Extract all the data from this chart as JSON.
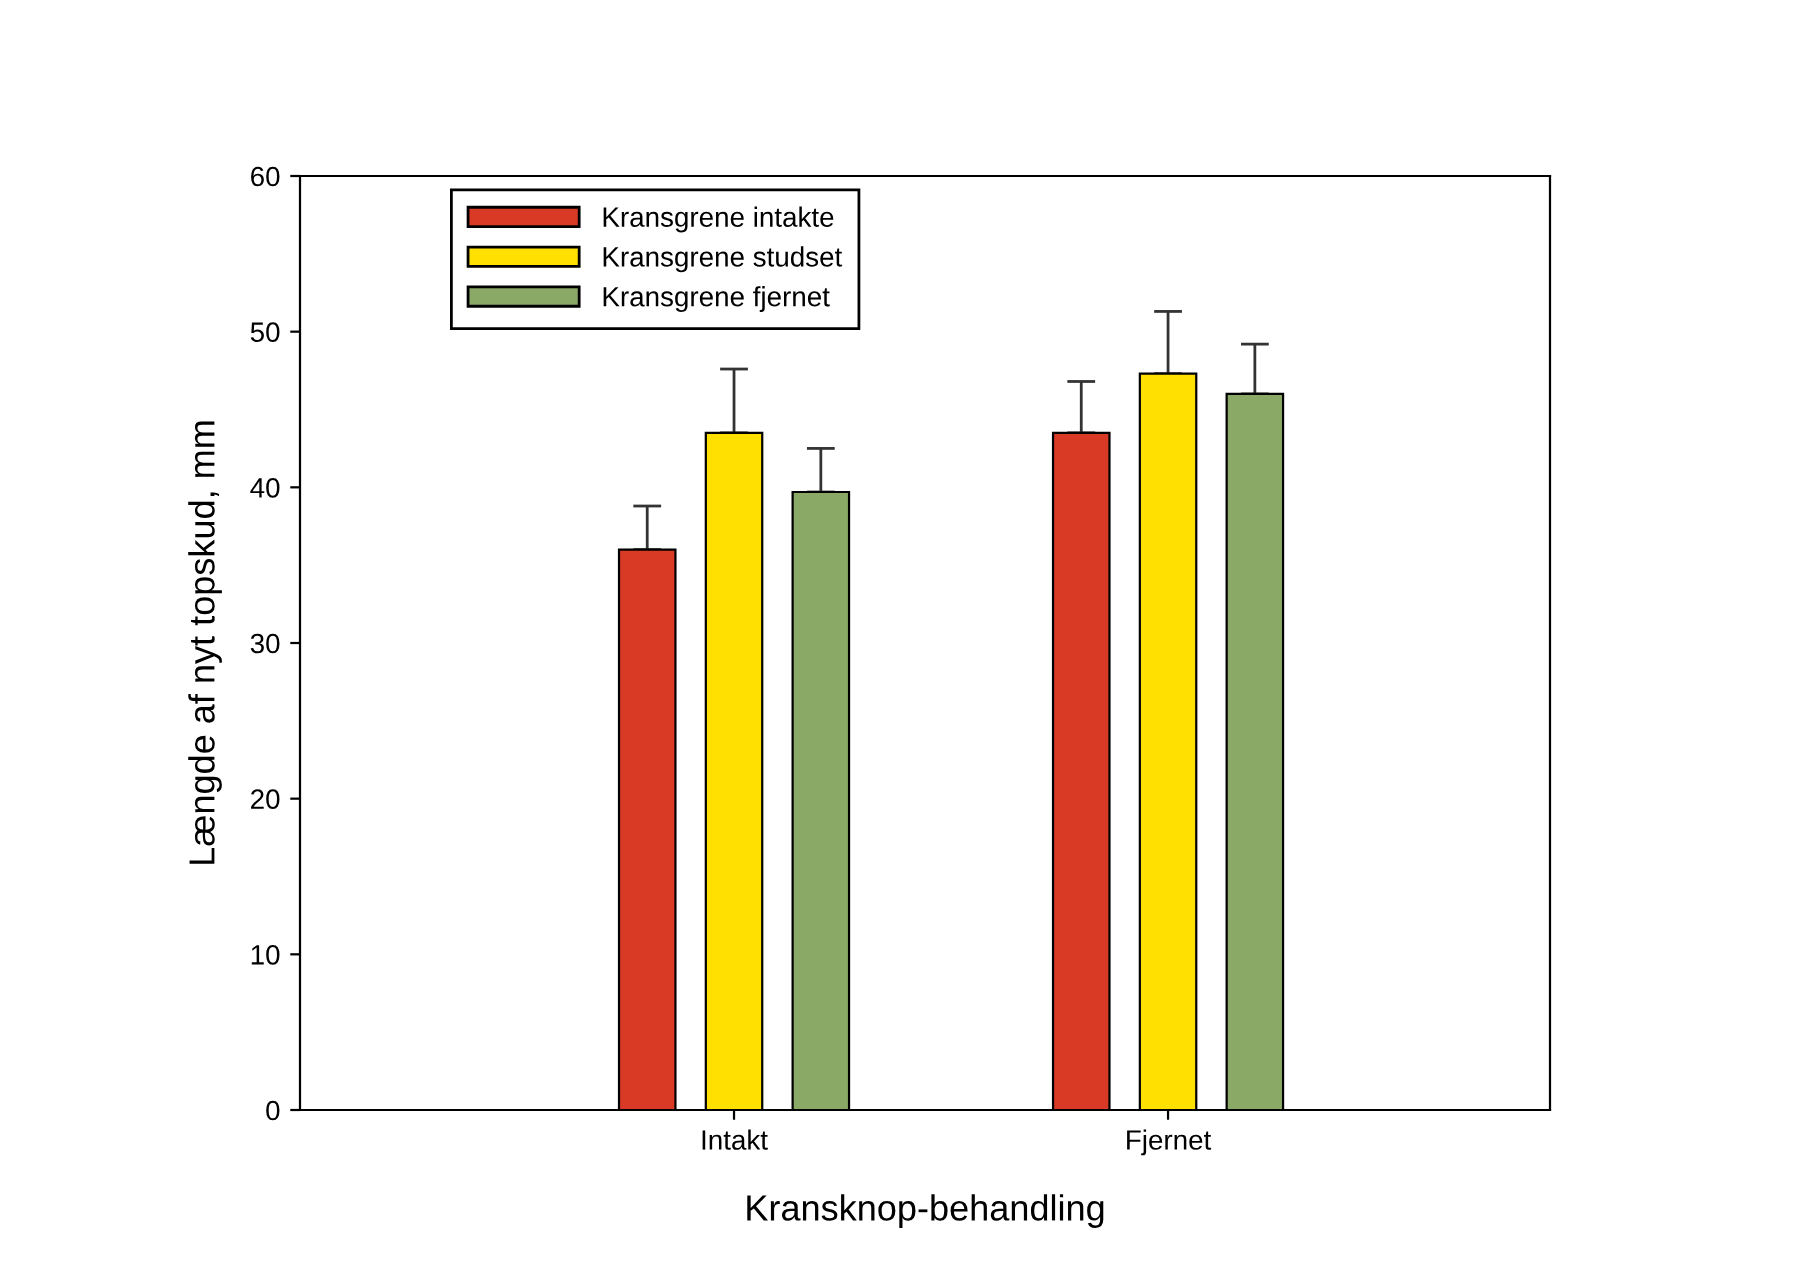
{
  "chart_data": {
    "type": "bar",
    "xlabel": "Kransknop-behandling",
    "ylabel": "Længde af nyt topskud, mm",
    "categories": [
      "Intakt",
      "Fjernet"
    ],
    "series": [
      {
        "name": "Kransgrene intakte",
        "color": "#d93a26",
        "values": [
          36,
          43.5
        ],
        "errors": [
          [
            36,
            38.8
          ],
          [
            43.5,
            46.8
          ]
        ]
      },
      {
        "name": "Kransgrene studset",
        "color": "#ffe000",
        "values": [
          43.5,
          47.3
        ],
        "errors": [
          [
            43.5,
            47.6
          ],
          [
            47.3,
            51.3
          ]
        ]
      },
      {
        "name": "Kransgrene fjernet",
        "color": "#8aa866",
        "values": [
          39.7,
          46
        ],
        "errors": [
          [
            39.7,
            42.5
          ],
          [
            46,
            49.2
          ]
        ]
      }
    ],
    "ylim": [
      0,
      60
    ],
    "yticks": [
      0,
      10,
      20,
      30,
      40,
      50,
      60
    ],
    "grid": false,
    "legend": "top left"
  }
}
